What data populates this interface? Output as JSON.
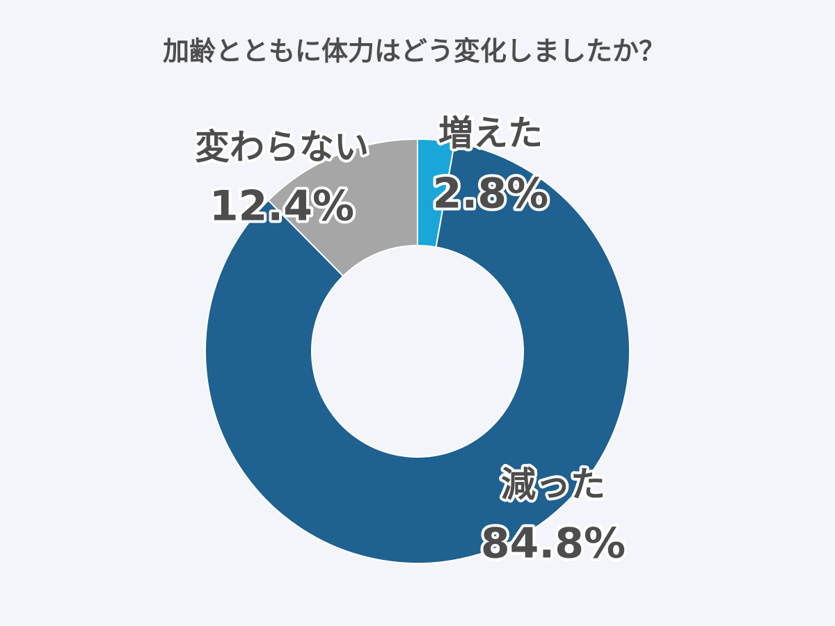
{
  "chart_data": {
    "type": "donut",
    "title": "加齢とともに体力はどう変化しましたか？",
    "categories": [
      "増えた",
      "減った",
      "変わらない"
    ],
    "values": [
      2.8,
      84.8,
      12.4
    ],
    "value_labels": [
      "2.8%",
      "84.8%",
      "12.4%"
    ],
    "colors": [
      "#1aa6d8",
      "#1f6190",
      "#a6a6a6"
    ]
  }
}
